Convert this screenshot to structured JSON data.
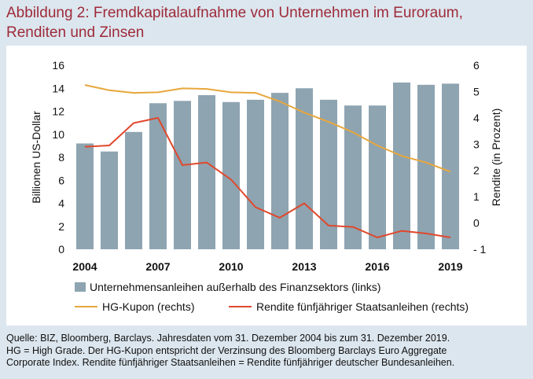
{
  "title_lines": [
    "Abbildung 2: Fremdkapitalaufnahme von Unternehmen im Euroraum,",
    "Renditen und Zinsen"
  ],
  "source_lines": [
    "Quelle: BIZ, Bloomberg, Barclays. Jahresdaten vom 31. Dezember 2004 bis zum 31. Dezember 2019.",
    "HG = High Grade.  Der HG-Kupon entspricht der Verzinsung des Bloomberg Barclays Euro Aggregate",
    "Corporate Index. Rendite fünfjähriger Staatsanleihen = Rendite fünfjähriger deutscher Bundesanleihen."
  ],
  "colors": {
    "title": "#9e2a3a",
    "bars": "#8ea4b1",
    "hg_kupon": "#e8a73c",
    "rendite": "#e0482c",
    "background": "#dce6ee"
  },
  "chart_data": {
    "type": "bar",
    "x": [
      2004,
      2005,
      2006,
      2007,
      2008,
      2009,
      2010,
      2011,
      2012,
      2013,
      2014,
      2015,
      2016,
      2017,
      2018,
      2019
    ],
    "x_tick_labels": [
      "2004",
      "2007",
      "2010",
      "2013",
      "2016",
      "2019"
    ],
    "ylabel_left": "Billionen US-Dollar",
    "ylabel_right": "Rendite (in Prozent)",
    "ylim_left": [
      0,
      16
    ],
    "ylim_right": [
      -1,
      6
    ],
    "y_ticks_left": [
      "0",
      "2",
      "4",
      "6",
      "8",
      "10",
      "12",
      "14",
      "16"
    ],
    "y_ticks_right": [
      "- 1",
      "0",
      "1",
      "2",
      "3",
      "4",
      "5",
      "6"
    ],
    "grid": false,
    "legend_position": "bottom",
    "series": [
      {
        "name": "Unternehmensanleihen außerhalb des Finanzsektors (links)",
        "type": "bar",
        "axis": "left",
        "values": [
          9.2,
          8.5,
          10.2,
          12.7,
          12.9,
          13.4,
          12.8,
          13.0,
          13.6,
          14.0,
          13.0,
          12.5,
          12.5,
          14.5,
          14.3,
          14.4
        ]
      },
      {
        "name": "HG-Kupon (rechts)",
        "type": "line",
        "axis": "right",
        "values": [
          5.25,
          5.05,
          4.95,
          4.97,
          5.12,
          5.1,
          4.97,
          4.95,
          4.62,
          4.2,
          3.85,
          3.45,
          2.95,
          2.55,
          2.3,
          1.95
        ]
      },
      {
        "name": "Rendite fünfjähriger Staatsanleihen (rechts)",
        "type": "line",
        "axis": "right",
        "values": [
          2.9,
          2.95,
          3.8,
          4.0,
          2.2,
          2.3,
          1.65,
          0.6,
          0.2,
          0.75,
          -0.1,
          -0.15,
          -0.55,
          -0.3,
          -0.4,
          -0.55
        ]
      }
    ]
  }
}
